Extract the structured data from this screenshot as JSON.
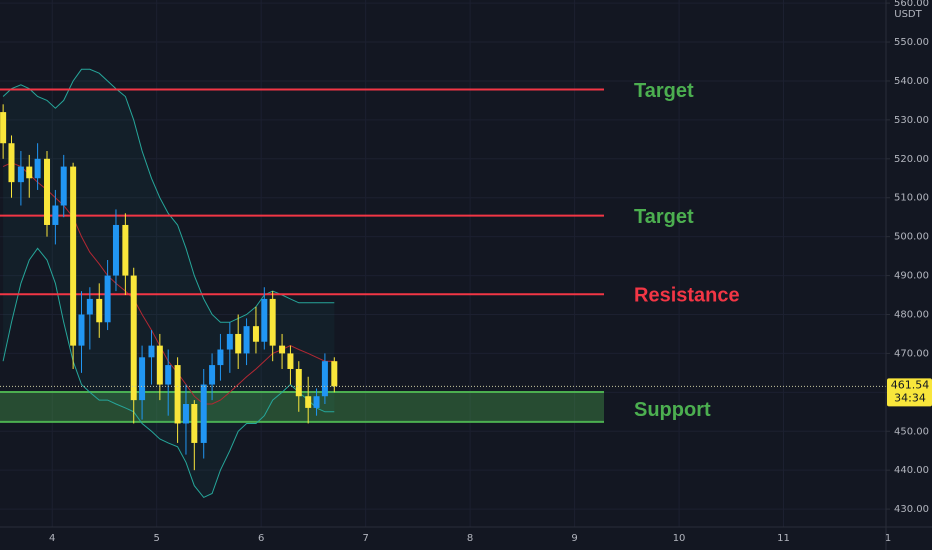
{
  "chart_data": {
    "type": "candlestick",
    "x": [
      3.53,
      3.61,
      3.7,
      3.78,
      3.86,
      3.95,
      4.03,
      4.11,
      4.2,
      4.28,
      4.36,
      4.45,
      4.53,
      4.61,
      4.7,
      4.78,
      4.86,
      4.95,
      5.03,
      5.11,
      5.2,
      5.28,
      5.36,
      5.45,
      5.53,
      5.61,
      5.7,
      5.78,
      5.86,
      5.95,
      6.03,
      6.11,
      6.2,
      6.28,
      6.36,
      6.45,
      6.53,
      6.61,
      6.7
    ],
    "open": [
      532,
      524,
      514,
      518,
      515,
      520,
      503,
      508,
      518,
      472,
      480,
      484,
      478,
      490,
      503,
      490,
      458,
      469,
      472,
      462,
      467,
      452,
      457,
      447,
      462,
      467,
      471,
      475,
      470,
      477,
      473,
      484,
      472,
      470,
      466,
      459,
      456,
      459,
      468
    ],
    "high": [
      534,
      526,
      522,
      521,
      524,
      522,
      512,
      521,
      519,
      486,
      487,
      488,
      494,
      507,
      506,
      492,
      472,
      476,
      475,
      471,
      469,
      462,
      458,
      466,
      470,
      475,
      478,
      480,
      479,
      482,
      487,
      486,
      475,
      472,
      468,
      464,
      461,
      470,
      469
    ],
    "low": [
      520,
      510,
      508,
      510,
      512,
      500,
      498,
      505,
      466,
      465,
      471,
      474,
      476,
      486,
      485,
      452,
      453,
      462,
      458,
      454,
      447,
      444,
      440,
      443,
      458,
      463,
      465,
      466,
      467,
      470,
      471,
      468,
      466,
      462,
      455,
      452,
      454,
      457,
      460
    ],
    "close": [
      524,
      514,
      518,
      515,
      520,
      503,
      508,
      518,
      472,
      480,
      484,
      478,
      490,
      503,
      490,
      458,
      469,
      472,
      462,
      467,
      452,
      457,
      447,
      462,
      467,
      471,
      475,
      470,
      477,
      473,
      484,
      472,
      470,
      466,
      459,
      456,
      459,
      468,
      461.54
    ],
    "upper_band": [
      536,
      538,
      539,
      538,
      536,
      535,
      533,
      535,
      540,
      543,
      543,
      542,
      540,
      538,
      536,
      530,
      522,
      515,
      510,
      506,
      503,
      497,
      490,
      484,
      480,
      478,
      478,
      479,
      480,
      482,
      485,
      486,
      485,
      484,
      483,
      483,
      483,
      483,
      483
    ],
    "lower_band": [
      468,
      478,
      488,
      494,
      497,
      494,
      488,
      478,
      468,
      462,
      460,
      458,
      458,
      457,
      456,
      455,
      452,
      450,
      448,
      447,
      446,
      442,
      436,
      433,
      434,
      440,
      445,
      450,
      452,
      452,
      454,
      458,
      460,
      462,
      460,
      458,
      456,
      455,
      455
    ],
    "moving_average": [
      518,
      519,
      518,
      516,
      514,
      512,
      510,
      508,
      505,
      500,
      496,
      493,
      490,
      488,
      486,
      484,
      480,
      476,
      472,
      468,
      465,
      462,
      459,
      457,
      457,
      458,
      460,
      462,
      464,
      466,
      468,
      470,
      471,
      472,
      471,
      470,
      469,
      468,
      468
    ],
    "up_color": "#2196f3",
    "down_color": "#f9e63b",
    "band_color": "#26a69a",
    "ma_color": "#b22833",
    "levels": [
      {
        "label": "Target",
        "value": 537.8,
        "color": "#f23645",
        "label_color": "#4caf50"
      },
      {
        "label": "Target",
        "value": 505.4,
        "color": "#f23645",
        "label_color": "#4caf50"
      },
      {
        "label": "Resistance",
        "value": 485.2,
        "color": "#f23645",
        "label_color": "#f23645"
      }
    ],
    "support": {
      "label": "Support",
      "low": 452.4,
      "high": 460.1,
      "color": "#4caf50"
    },
    "countdown": "34:34",
    "currency": "USDT",
    "xlim": [
      3.5,
      12
    ],
    "xticks": [
      4,
      5,
      6,
      7,
      8,
      9,
      10,
      11,
      {
        "value": 12,
        "label": "1"
      }
    ],
    "ylim": [
      425.4,
      560.8
    ],
    "yticks": [
      {
        "value": 430,
        "label": "430.00"
      },
      {
        "value": 440,
        "label": "440.00"
      },
      {
        "value": 450,
        "label": "450.00"
      },
      {
        "value": 460,
        "label": "460.00"
      },
      {
        "value": 470,
        "label": "470.00"
      },
      {
        "value": 480,
        "label": "480.00"
      },
      {
        "value": 490,
        "label": "490.00"
      },
      {
        "value": 500,
        "label": "500.00"
      },
      {
        "value": 510,
        "label": "510.00"
      },
      {
        "value": 520,
        "label": "520.00"
      },
      {
        "value": 530,
        "label": "530.00"
      },
      {
        "value": 540,
        "label": "540.00"
      },
      {
        "value": 550,
        "label": "550.00"
      },
      {
        "value": 560,
        "label": "560.00"
      }
    ],
    "grid": true
  }
}
